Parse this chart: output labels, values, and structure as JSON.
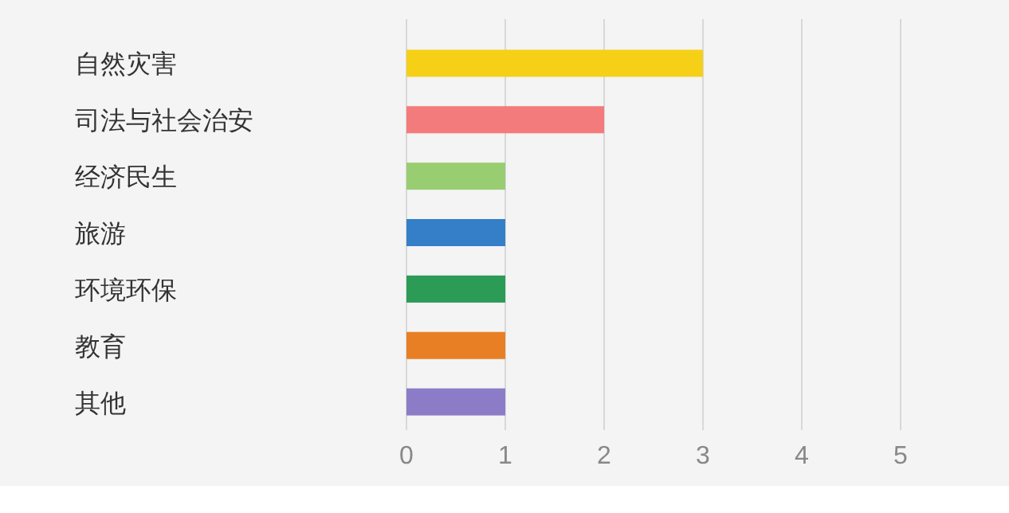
{
  "chart_data": {
    "type": "bar",
    "orientation": "horizontal",
    "categories": [
      "自然灾害",
      "司法与社会治安",
      "经济民生",
      "旅游",
      "环境环保",
      "教育",
      "其他"
    ],
    "values": [
      3,
      2,
      1,
      1,
      1,
      1,
      1
    ],
    "colors": [
      "#f5d016",
      "#f47b7b",
      "#99cd72",
      "#357ec8",
      "#2b9b55",
      "#e87f25",
      "#8c7cc7"
    ],
    "xlim": [
      0,
      5
    ],
    "xticks": [
      0,
      1,
      2,
      3,
      4,
      5
    ],
    "grid": "x"
  }
}
